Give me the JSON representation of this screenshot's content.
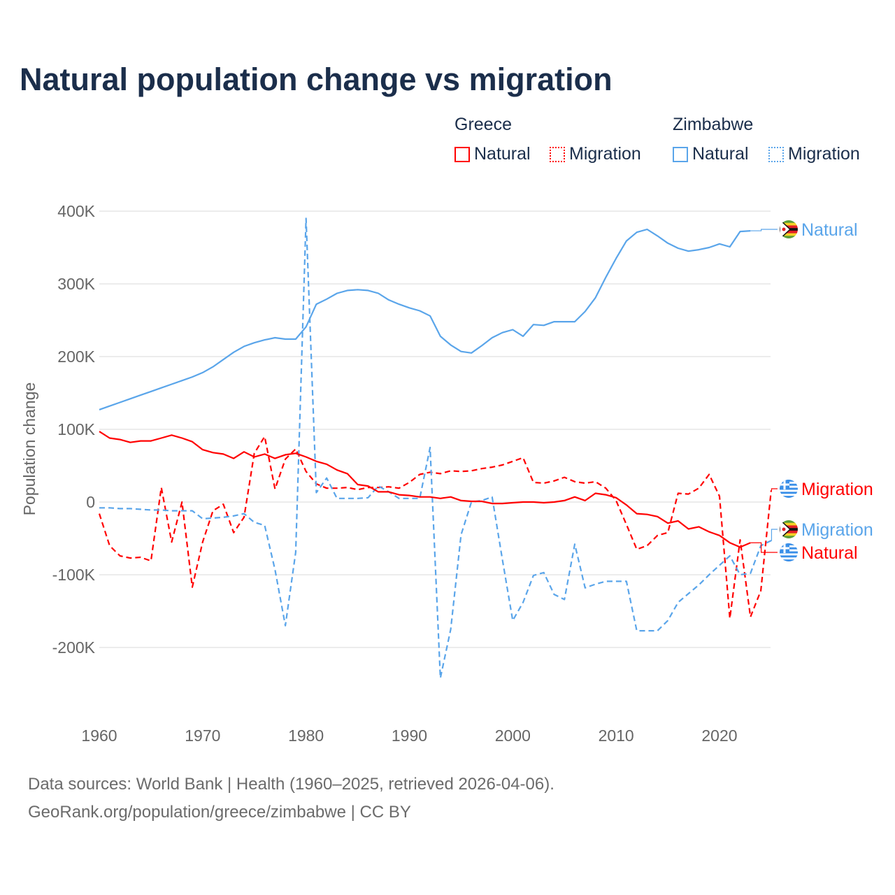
{
  "chart_data": {
    "type": "line",
    "title": "Natural population change vs migration",
    "ylabel": "Population change",
    "xlabel": "",
    "xlim": [
      1960,
      2025
    ],
    "ylim": [
      -250000,
      400000
    ],
    "x_ticks": [
      "1960",
      "1970",
      "1980",
      "1990",
      "2000",
      "2010",
      "2020"
    ],
    "y_ticks": [
      {
        "v": 400000,
        "label": "400K"
      },
      {
        "v": 300000,
        "label": "300K"
      },
      {
        "v": 200000,
        "label": "200K"
      },
      {
        "v": 100000,
        "label": "100K"
      },
      {
        "v": 0,
        "label": "0"
      },
      {
        "v": -100000,
        "label": "-100K"
      },
      {
        "v": -200000,
        "label": "-200K"
      }
    ],
    "legend": {
      "groups": [
        {
          "country": "Greece",
          "items": [
            {
              "label": "Natural",
              "style": "solid"
            },
            {
              "label": "Migration",
              "style": "dotted"
            }
          ]
        },
        {
          "country": "Zimbabwe",
          "items": [
            {
              "label": "Natural",
              "style": "solid"
            },
            {
              "label": "Migration",
              "style": "dotted"
            }
          ]
        }
      ]
    },
    "series": [
      {
        "name": "Zimbabwe Natural",
        "country": "Zimbabwe",
        "kind": "Natural",
        "color": "#5aa5ea",
        "dashed": false,
        "start": 1960,
        "end_label": "Natural",
        "flag": "zimbabwe",
        "values": [
          127,
          132,
          137,
          142,
          147,
          152,
          157,
          162,
          167,
          172,
          178,
          186,
          196,
          206,
          214,
          219,
          223,
          226,
          224,
          224,
          241,
          272,
          279,
          287,
          291,
          292,
          291,
          287,
          278,
          272,
          267,
          263,
          256,
          228,
          216,
          207,
          205,
          215,
          226,
          233,
          237,
          228,
          244,
          243,
          248,
          248,
          248,
          262,
          281,
          309,
          335,
          359,
          371,
          375,
          366,
          356,
          349,
          345,
          347,
          350,
          355,
          351,
          372,
          373
        ]
      },
      {
        "name": "Greece Migration",
        "country": "Greece",
        "kind": "Migration",
        "color": "#ff0000",
        "dashed": true,
        "start": 1960,
        "end_label": "Migration",
        "flag": "greece",
        "values": [
          -16,
          -60,
          -74,
          -77,
          -76,
          -81,
          20,
          -55,
          0,
          -117,
          -55,
          -12,
          -3,
          -42,
          -21,
          67,
          90,
          18,
          59,
          73,
          42,
          25,
          19,
          19,
          20,
          17,
          20,
          20,
          21,
          19,
          27,
          38,
          41,
          39,
          43,
          42,
          43,
          46,
          48,
          51,
          56,
          61,
          27,
          26,
          29,
          34,
          28,
          26,
          28,
          19,
          2,
          -31,
          -65,
          -60,
          -46,
          -42,
          12,
          11,
          19,
          38,
          8,
          -160,
          -52,
          -158,
          -122,
          16
        ]
      },
      {
        "name": "Zimbabwe Migration",
        "country": "Zimbabwe",
        "kind": "Migration",
        "color": "#5aa5ea",
        "dashed": true,
        "start": 1960,
        "end_label": "Migration",
        "flag": "zimbabwe",
        "values": [
          -8,
          -8,
          -9,
          -9,
          -10,
          -11,
          -11,
          -12,
          -12,
          -12,
          -23,
          -22,
          -21,
          -19,
          -16,
          -28,
          -32,
          -93,
          -170,
          -69,
          390,
          13,
          33,
          5,
          5,
          5,
          6,
          22,
          14,
          5,
          5,
          5,
          75,
          -242,
          -175,
          -45,
          0,
          2,
          7,
          -79,
          -163,
          -138,
          -101,
          -97,
          -127,
          -134,
          -58,
          -118,
          -113,
          -109,
          -109,
          -109,
          -177,
          -177,
          -177,
          -163,
          -138,
          -126,
          -114,
          -100,
          -87,
          -74,
          -100,
          -98,
          -60,
          -53
        ]
      },
      {
        "name": "Greece Natural",
        "country": "Greece",
        "kind": "Natural",
        "color": "#ff0000",
        "dashed": false,
        "start": 1960,
        "end_label": "Natural",
        "flag": "greece",
        "values": [
          97,
          88,
          86,
          82,
          84,
          84,
          88,
          92,
          88,
          83,
          72,
          68,
          66,
          60,
          69,
          62,
          66,
          60,
          65,
          67,
          62,
          56,
          52,
          44,
          39,
          24,
          22,
          14,
          14,
          10,
          9,
          7,
          7,
          5,
          7,
          2,
          1,
          1,
          -2,
          -2,
          -1,
          0,
          0,
          -1,
          0,
          2,
          7,
          2,
          12,
          10,
          6,
          -4,
          -16,
          -17,
          -20,
          -29,
          -26,
          -37,
          -34,
          -41,
          -46,
          -56,
          -62,
          -56
        ]
      }
    ],
    "value_unit": "thousands",
    "grid": true
  },
  "sources": {
    "line1": "Data sources: World Bank | Health (1960–2025, retrieved 2026-04-06).",
    "line2": "GeoRank.org/population/greece/zimbabwe | CC BY"
  }
}
